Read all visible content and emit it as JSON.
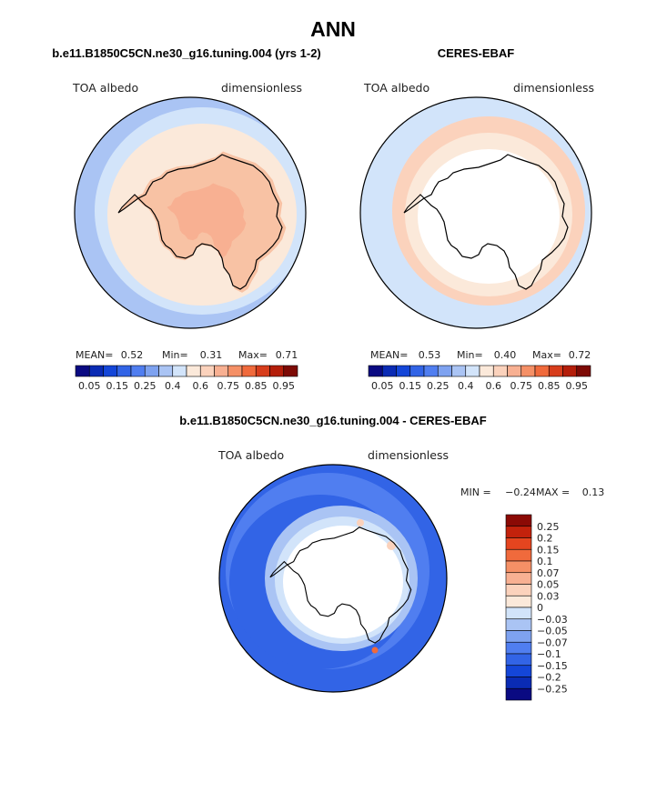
{
  "main_title": "ANN",
  "panels": [
    {
      "id": "model",
      "title": "b.e11.B1850C5CN.ne30_g16.tuning.004 (yrs 1-2)",
      "variable": "TOA albedo",
      "units": "dimensionless",
      "stats": {
        "mean_label": "MEAN=",
        "mean": "0.52",
        "min_label": "Min=",
        "min": "0.31",
        "max_label": "Max=",
        "max": "0.71"
      }
    },
    {
      "id": "obs",
      "title": "CERES-EBAF",
      "variable": "TOA albedo",
      "units": "dimensionless",
      "stats": {
        "mean_label": "MEAN=",
        "mean": "0.53",
        "min_label": "Min=",
        "min": "0.40",
        "max_label": "Max=",
        "max": "0.72"
      }
    },
    {
      "id": "diff",
      "title": "b.e11.B1850C5CN.ne30_g16.tuning.004 - CERES-EBAF",
      "variable": "TOA albedo",
      "units": "dimensionless",
      "minmax": {
        "min_label": "MIN =",
        "min": "−0.24",
        "max_label": "MAX =",
        "max": "0.13"
      }
    }
  ],
  "abs_colorbar": {
    "colors": [
      "#0a0a82",
      "#0a2bb4",
      "#1446d8",
      "#3264e6",
      "#507ef0",
      "#7ea2f0",
      "#aac4f4",
      "#d2e4fa",
      "#fbe9da",
      "#fbd2bc",
      "#f8b092",
      "#f59066",
      "#f06a3c",
      "#d73d1c",
      "#b41e0a",
      "#7d0a05"
    ],
    "labels": [
      "0.05",
      "0.15",
      "0.25",
      "0.4",
      "0.6",
      "0.75",
      "0.85",
      "0.95"
    ]
  },
  "diff_colorbar": {
    "colors": [
      "#0a0a82",
      "#0a2bb4",
      "#1446d8",
      "#3264e6",
      "#507ef0",
      "#7ea2f0",
      "#aac4f4",
      "#d2e4fa",
      "#fbe9da",
      "#fbd2bc",
      "#f8b092",
      "#f59066",
      "#f06a3c",
      "#e5451f",
      "#c3220c",
      "#8b0a05"
    ],
    "labels": [
      "0.25",
      "0.2",
      "0.15",
      "0.1",
      "0.07",
      "0.05",
      "0.03",
      "0",
      "−0.03",
      "−0.05",
      "−0.07",
      "−0.1",
      "−0.15",
      "−0.2",
      "−0.25"
    ]
  }
}
